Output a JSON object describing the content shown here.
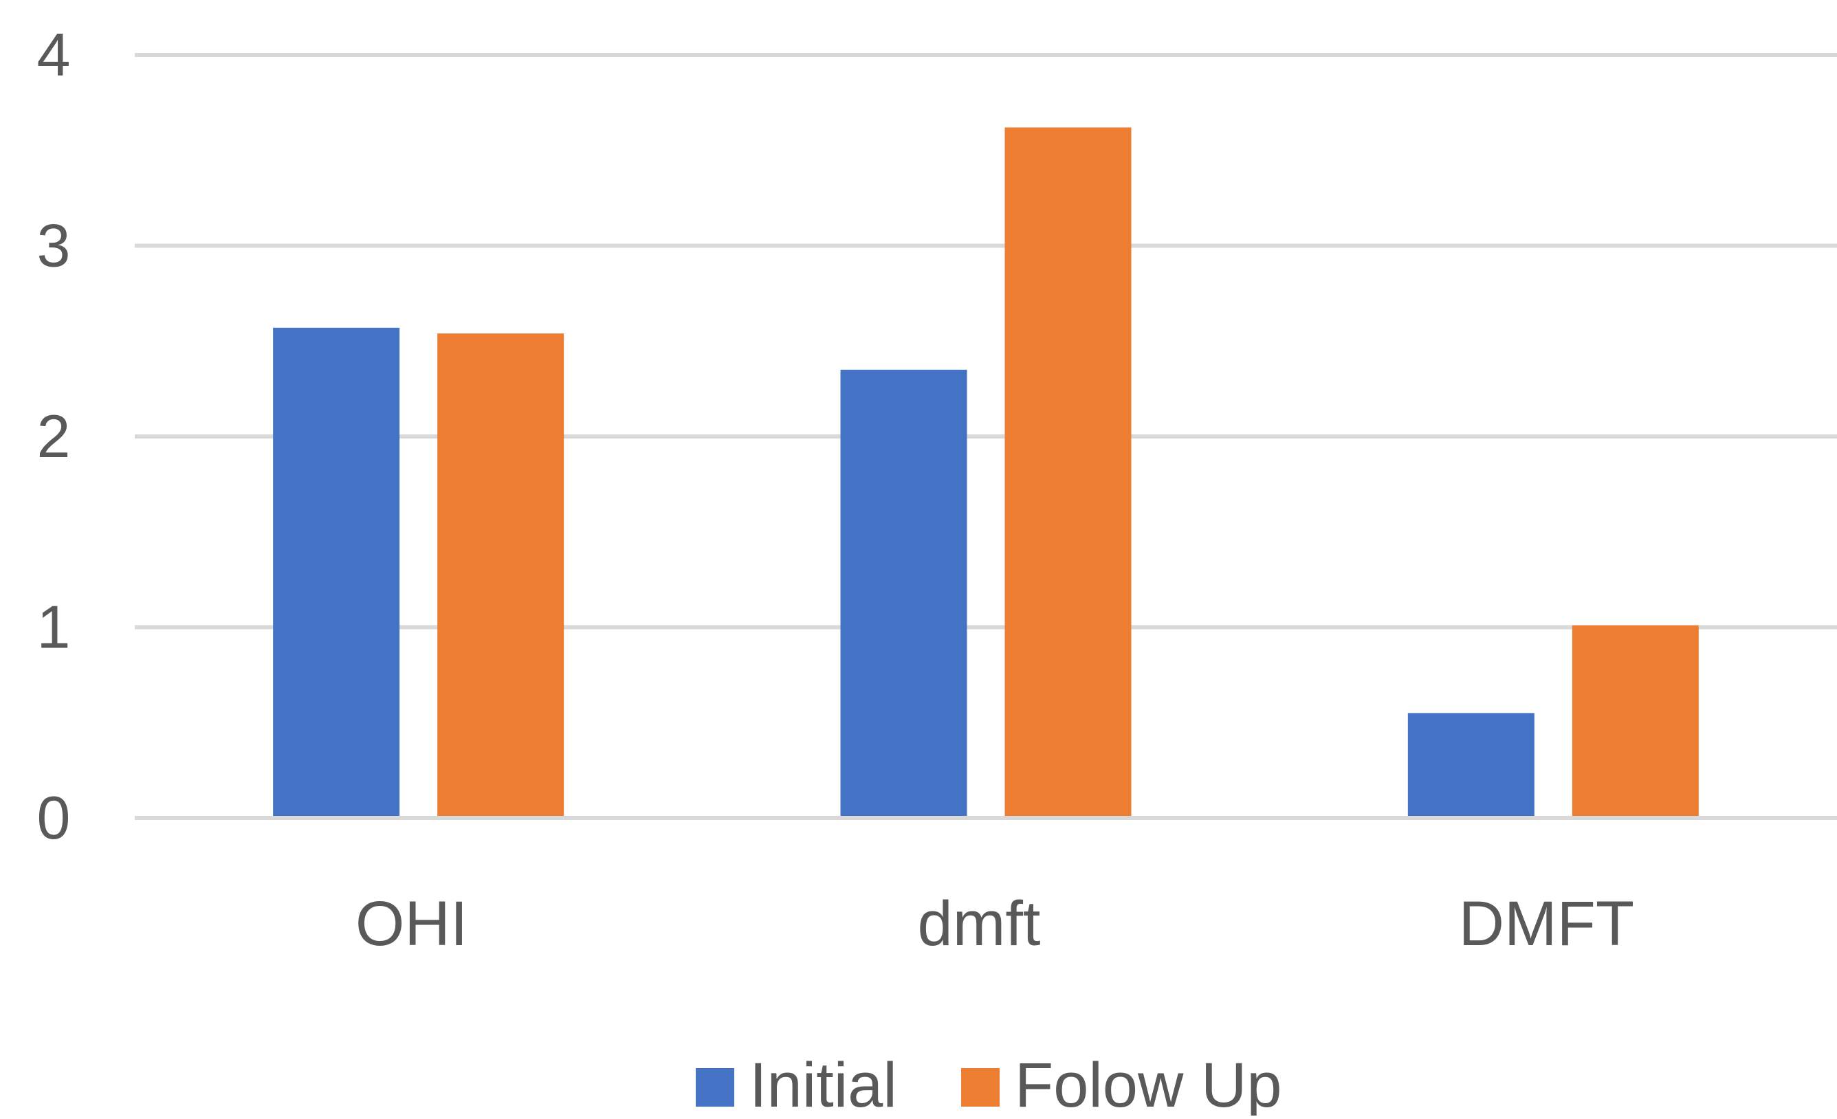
{
  "chart_data": {
    "type": "bar",
    "title": "",
    "xlabel": "",
    "ylabel": "",
    "categories": [
      "OHI",
      "dmft",
      "DMFT"
    ],
    "series": [
      {
        "name": "Initial",
        "values": [
          2.57,
          2.35,
          0.55
        ],
        "color": "#4472C4"
      },
      {
        "name": "Folow Up",
        "values": [
          2.54,
          3.62,
          1.01
        ],
        "color": "#ED7D31"
      }
    ],
    "ylim": [
      0,
      4
    ],
    "yticks": [
      0,
      1,
      2,
      3,
      4
    ],
    "grid": true,
    "gridline_color": "#d9d9d9",
    "legend_position": "bottom"
  }
}
